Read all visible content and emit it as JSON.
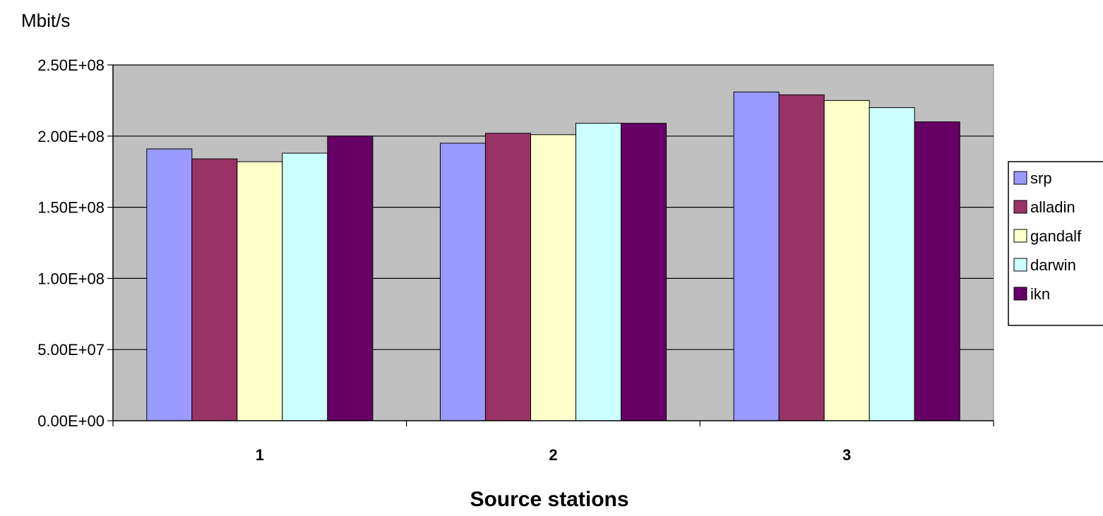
{
  "chart_data": {
    "type": "bar",
    "title": "",
    "ylabel": "Mbit/s",
    "xlabel": "Source stations",
    "categories": [
      "1",
      "2",
      "3"
    ],
    "ylim": [
      0,
      250000000
    ],
    "ytick_values": [
      0,
      50000000,
      100000000,
      150000000,
      200000000,
      250000000
    ],
    "ytick_labels": [
      "0.00E+00",
      "5.00E+07",
      "1.00E+08",
      "1.50E+08",
      "2.00E+08",
      "2.50E+08"
    ],
    "grid": true,
    "legend_position": "right",
    "plot_background": "#c0c0c0",
    "series": [
      {
        "name": "srp",
        "color": "#9999ff",
        "values": [
          191000000,
          195000000,
          231000000
        ]
      },
      {
        "name": "alladin",
        "color": "#993366",
        "values": [
          184000000,
          202000000,
          229000000
        ]
      },
      {
        "name": "gandalf",
        "color": "#ffffcc",
        "values": [
          182000000,
          201000000,
          225000000
        ]
      },
      {
        "name": "darwin",
        "color": "#ccffff",
        "values": [
          188000000,
          209000000,
          220000000
        ]
      },
      {
        "name": "ikn",
        "color": "#660066",
        "values": [
          200000000,
          209000000,
          210000000
        ]
      }
    ]
  }
}
